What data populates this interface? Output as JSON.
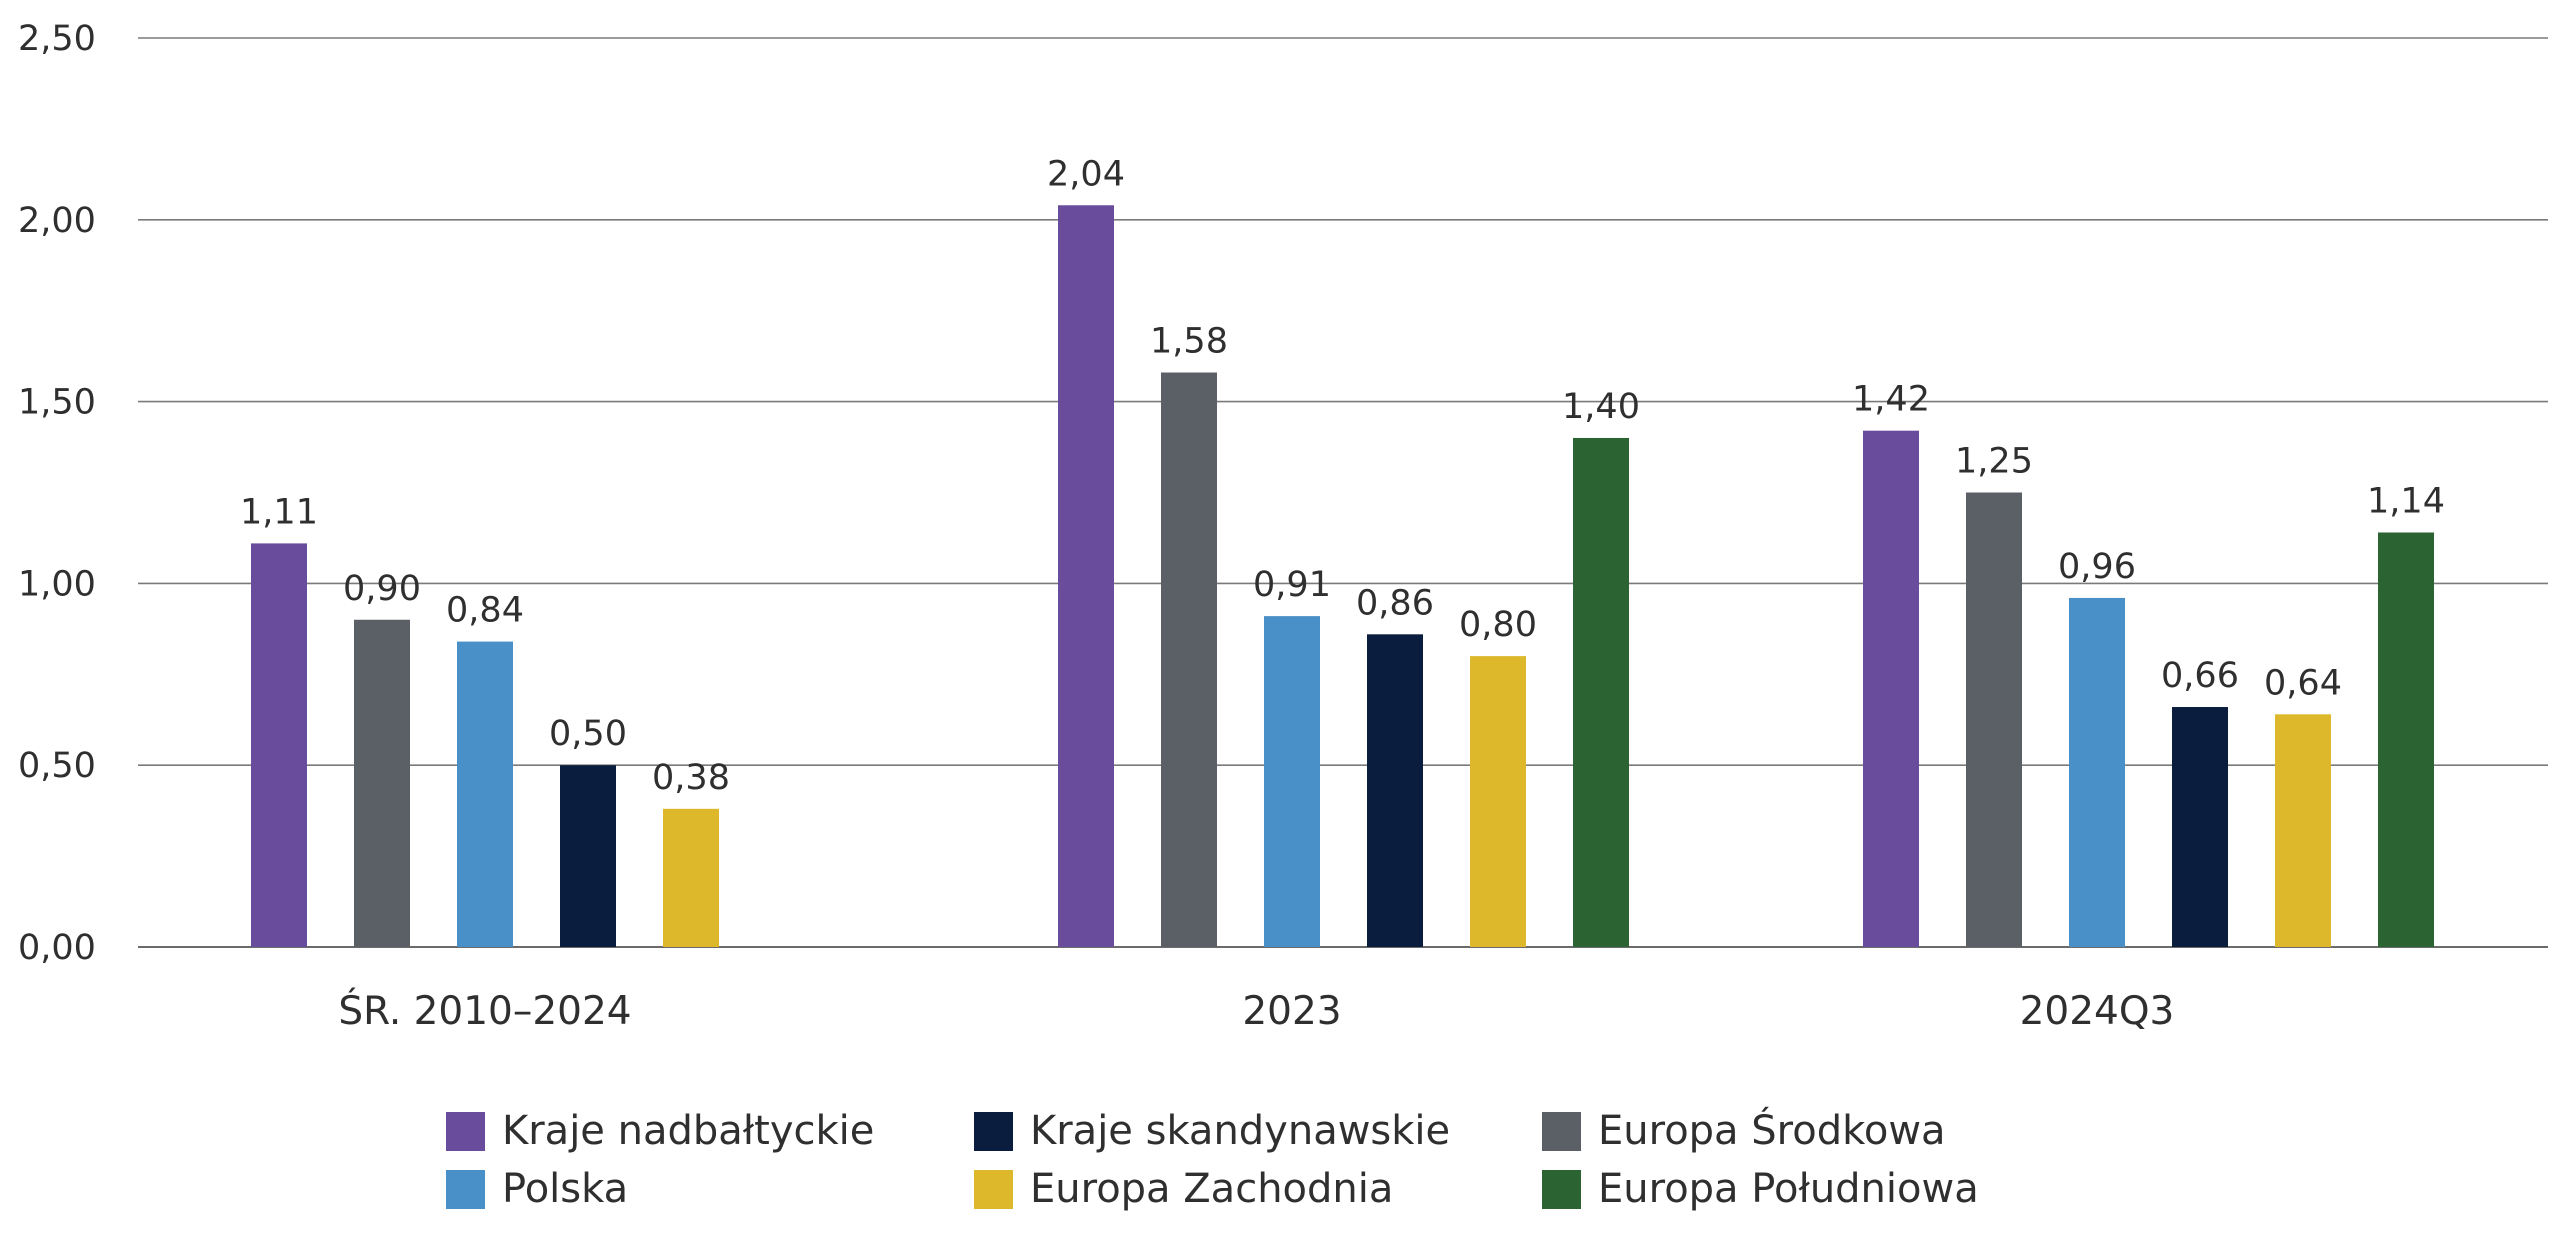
{
  "chart_data": {
    "type": "bar",
    "categories": [
      "ŚR. 2010–2024",
      "2023",
      "2024Q3"
    ],
    "ylim": [
      0,
      2.5
    ],
    "yticks": [
      0,
      0.5,
      1,
      1.5,
      2,
      2.5
    ],
    "ytick_labels": [
      "0,00",
      "0,50",
      "1,00",
      "1,50",
      "2,00",
      "2,50"
    ],
    "grid": true,
    "legend_placement": "bottom",
    "series": [
      {
        "name": "Kraje nadbałtyckie",
        "color": "#6a4c9c",
        "values": [
          1.11,
          2.04,
          1.42
        ],
        "labels": [
          "1,11",
          "2,04",
          "1,42"
        ]
      },
      {
        "name": "Europa Środkowa",
        "color": "#5b5f66",
        "values": [
          0.9,
          1.58,
          1.25
        ],
        "labels": [
          "0,90",
          "1,58",
          "1,25"
        ]
      },
      {
        "name": "Polska",
        "color": "#4a90c8",
        "values": [
          0.84,
          0.91,
          0.96
        ],
        "labels": [
          "0,84",
          "0,91",
          "0,96"
        ]
      },
      {
        "name": "Kraje skandynawskie",
        "color": "#0b1d3f",
        "values": [
          0.5,
          0.86,
          0.66
        ],
        "labels": [
          "0,50",
          "0,86",
          "0,66"
        ]
      },
      {
        "name": "Europa Zachodnia",
        "color": "#dcb82a",
        "values": [
          0.38,
          0.8,
          0.64
        ],
        "labels": [
          "0,38",
          "0,80",
          "0,64"
        ]
      },
      {
        "name": "Europa Południowa",
        "color": "#2b6332",
        "values": [
          null,
          1.4,
          1.14
        ],
        "labels": [
          "",
          "1,40",
          "1,14"
        ]
      }
    ],
    "legend_order": [
      "Kraje nadbałtyckie",
      "Kraje skandynawskie",
      "Europa Środkowa",
      "Polska",
      "Europa Zachodnia",
      "Europa Południowa"
    ]
  }
}
